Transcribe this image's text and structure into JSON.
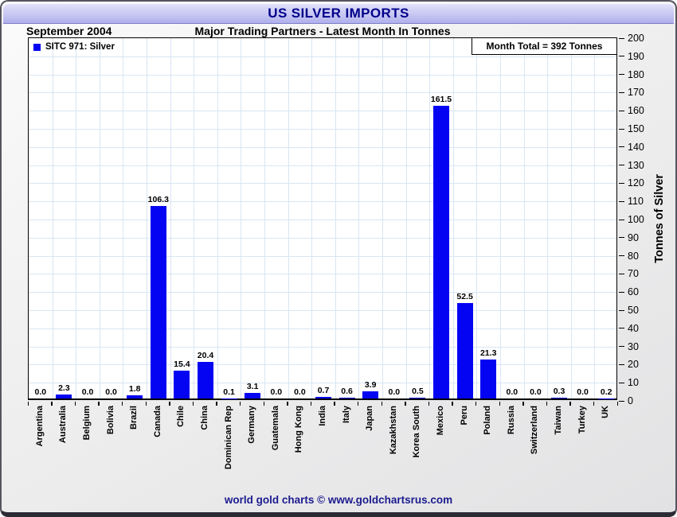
{
  "title_bar": {
    "title": "US SILVER IMPORTS"
  },
  "header": {
    "period": "September 2004",
    "subtitle": "Major Trading Partners - Latest Month In Tonnes"
  },
  "footer": {
    "credit": "world gold charts © www.goldchartsrus.com"
  },
  "colors": {
    "bar": "#0404f2",
    "grid": "#d9e5f3",
    "title_text": "#00008b",
    "titlebar_top": "#e4e4fb",
    "titlebar_bottom": "#b0b0ec",
    "footer_text": "#1b1b8e",
    "plot_bg": "#ffffff"
  },
  "chart_data": {
    "type": "bar",
    "title": "US SILVER IMPORTS",
    "period": "September 2004",
    "subtitle": "Major Trading Partners - Latest Month In Tonnes",
    "series_label": "SITC 971: Silver",
    "annotation": "Month Total = 392 Tonnes",
    "categories": [
      "Argentina",
      "Australia",
      "Belgium",
      "Bolivia",
      "Brazil",
      "Canada",
      "Chile",
      "China",
      "Dominican Rep",
      "Germany",
      "Guatemala",
      "Hong Kong",
      "India",
      "Italy",
      "Japan",
      "Kazakhstan",
      "Korea South",
      "Mexico",
      "Peru",
      "Poland",
      "Russia",
      "Switzerland",
      "Taiwan",
      "Turkey",
      "UK"
    ],
    "values": [
      0.0,
      2.3,
      0.0,
      0.0,
      1.8,
      106.3,
      15.4,
      20.4,
      0.1,
      3.1,
      0.0,
      0.0,
      0.7,
      0.6,
      3.9,
      0.0,
      0.5,
      161.5,
      52.5,
      21.3,
      0.0,
      0.0,
      0.3,
      0.0,
      0.2
    ],
    "xlabel": "",
    "ylabel": "Tonnes of Silver",
    "ylim": [
      0,
      200
    ],
    "ytick_step": 10,
    "grid": true,
    "legend_position": "top-left"
  }
}
